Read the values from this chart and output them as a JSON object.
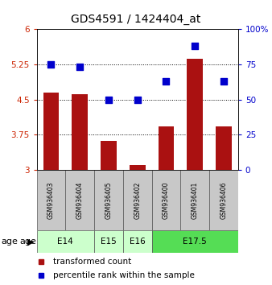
{
  "title": "GDS4591 / 1424404_at",
  "samples": [
    "GSM936403",
    "GSM936404",
    "GSM936405",
    "GSM936402",
    "GSM936400",
    "GSM936401",
    "GSM936406"
  ],
  "red_values": [
    4.65,
    4.62,
    3.62,
    3.1,
    3.93,
    5.37,
    3.93
  ],
  "blue_values": [
    75,
    73,
    50,
    50,
    63,
    88,
    63
  ],
  "ylim_left": [
    3,
    6
  ],
  "ylim_right": [
    0,
    100
  ],
  "yticks_left": [
    3,
    3.75,
    4.5,
    5.25,
    6
  ],
  "yticks_right": [
    0,
    25,
    50,
    75,
    100
  ],
  "ytick_labels_right": [
    "0",
    "25",
    "50",
    "75",
    "100%"
  ],
  "hlines": [
    3.75,
    4.5,
    5.25
  ],
  "bar_color": "#aa1111",
  "dot_color": "#0000cc",
  "bar_width": 0.55,
  "dot_size": 28,
  "background_plot": "#ffffff",
  "background_sample": "#c8c8c8",
  "legend_red": "transformed count",
  "legend_blue": "percentile rank within the sample",
  "title_fontsize": 10,
  "tick_fontsize": 7.5,
  "sample_fontsize": 5.5,
  "legend_fontsize": 7.5,
  "age_fontsize": 8,
  "groups": [
    {
      "label": "E14",
      "start": 0,
      "end": 1,
      "color": "#ccffcc"
    },
    {
      "label": "E15",
      "start": 2,
      "end": 2,
      "color": "#ccffcc"
    },
    {
      "label": "E16",
      "start": 3,
      "end": 3,
      "color": "#ccffcc"
    },
    {
      "label": "E17.5",
      "start": 4,
      "end": 6,
      "color": "#55dd55"
    }
  ]
}
